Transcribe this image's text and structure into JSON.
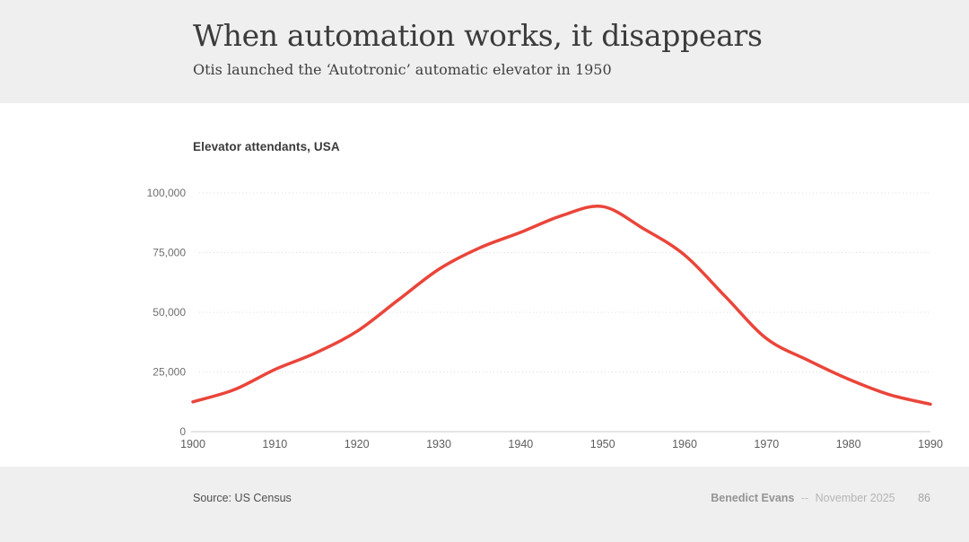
{
  "header": {
    "title": "When automation works, it disappears",
    "subtitle": "Otis launched the ‘Autotronic’ automatic elevator in 1950"
  },
  "chart_data": {
    "type": "line",
    "title": "Elevator attendants, USA",
    "series_name": "Elevator attendants, USA",
    "x": [
      1900,
      1905,
      1910,
      1915,
      1920,
      1925,
      1930,
      1935,
      1940,
      1945,
      1950,
      1955,
      1960,
      1965,
      1970,
      1975,
      1980,
      1985,
      1990
    ],
    "values": [
      12500,
      17500,
      26000,
      33000,
      42000,
      55000,
      68000,
      77000,
      83500,
      90500,
      94300,
      85000,
      74000,
      56500,
      39000,
      30000,
      22000,
      15500,
      11500
    ],
    "xticks": [
      1900,
      1910,
      1920,
      1930,
      1940,
      1950,
      1960,
      1970,
      1980,
      1990
    ],
    "yticks": [
      0,
      25000,
      50000,
      75000,
      100000
    ],
    "ylim": [
      0,
      100000
    ],
    "xlim": [
      1900,
      1990
    ],
    "xlabel": "",
    "ylabel": "",
    "grid": "horizontal-dotted",
    "legend": "none",
    "line_color": "#ea453a"
  },
  "footer": {
    "source": "Source: US Census",
    "author": "Benedict Evans",
    "separator": "--",
    "date": "November 2025",
    "page": "86"
  },
  "colors": {
    "band_bg": "#efefef",
    "grid_dotted": "#dcdcdc",
    "axis_line": "#c8c8c8",
    "accent_red": "#ea453a"
  }
}
